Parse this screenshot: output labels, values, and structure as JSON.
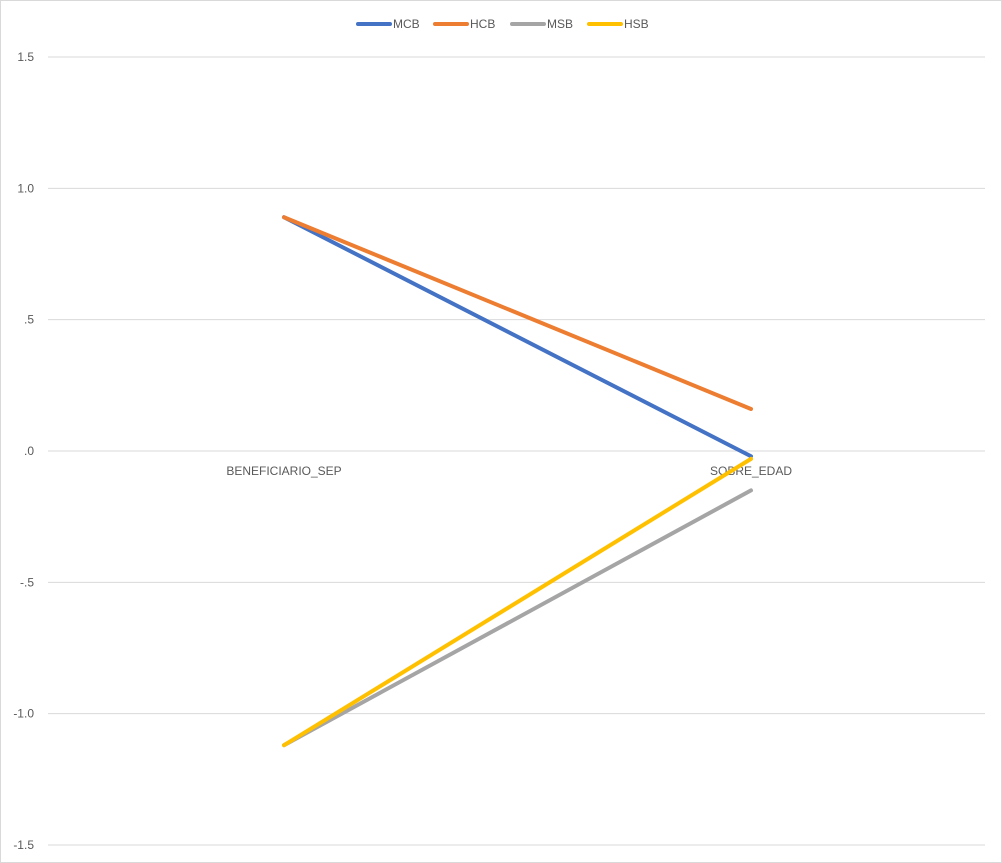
{
  "chart_data": {
    "type": "line",
    "title": "",
    "xlabel": "",
    "ylabel": "",
    "categories": [
      "BENEFICIARIO_SEP",
      "SOBRE_EDAD"
    ],
    "ylim": [
      -1.5,
      1.5
    ],
    "yticks": [
      1.5,
      1.0,
      0.5,
      0.0,
      -0.5,
      -1.0,
      -1.5
    ],
    "ytick_labels": [
      "1.5",
      "1.0",
      ".5",
      ".0",
      "-.5",
      "-1.0",
      "-1.5"
    ],
    "grid": true,
    "legend_position": "top",
    "series": [
      {
        "name": "MCB",
        "color": "#4472c4",
        "values": [
          0.89,
          -0.02
        ]
      },
      {
        "name": "HCB",
        "color": "#ed7d31",
        "values": [
          0.89,
          0.16
        ]
      },
      {
        "name": "MSB",
        "color": "#a5a5a5",
        "values": [
          -1.12,
          -0.15
        ]
      },
      {
        "name": "HSB",
        "color": "#ffc000",
        "values": [
          -1.12,
          -0.03
        ]
      }
    ]
  }
}
